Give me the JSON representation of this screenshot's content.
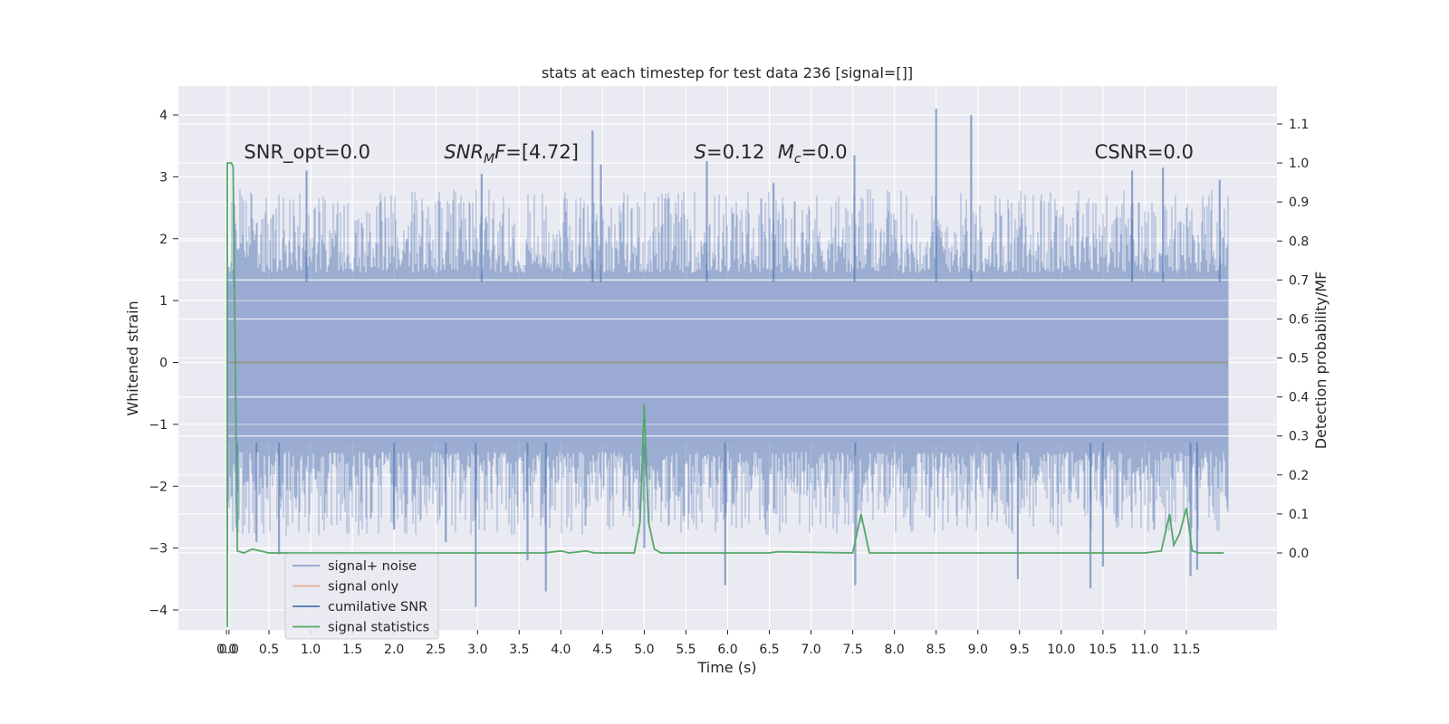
{
  "chart_data": {
    "type": "line",
    "title": "stats at each timestep for test data 236 [signal=[]]",
    "xlabel": "Time (s)",
    "ylabel": "Whitened strain",
    "y2label": "Detection probability/MF",
    "xlim": [
      -0.6,
      12.6
    ],
    "ylim": [
      -4.4,
      4.4
    ],
    "y2lim": [
      -0.19,
      1.2
    ],
    "xticks": [
      "0.0",
      "0.0",
      "0.5",
      "1.0",
      "1.5",
      "2.0",
      "2.5",
      "3.0",
      "3.5",
      "4.0",
      "4.5",
      "5.0",
      "5.5",
      "6.0",
      "6.5",
      "7.0",
      "7.5",
      "8.0",
      "8.5",
      "9.0",
      "9.5",
      "10.0",
      "10.5",
      "11.0",
      "11.5"
    ],
    "xtick_values": [
      -0.01,
      0.02,
      0.5,
      1.0,
      1.5,
      2.0,
      2.5,
      3.0,
      3.5,
      4.0,
      4.5,
      5.0,
      5.5,
      6.0,
      6.5,
      7.0,
      7.5,
      8.0,
      8.5,
      9.0,
      9.5,
      10.0,
      10.5,
      11.0,
      11.5
    ],
    "yticks": [
      4,
      3,
      2,
      1,
      0,
      -1,
      -2,
      -3,
      -4
    ],
    "ytick_labels": [
      "4",
      "3",
      "2",
      "1",
      "0",
      "−1",
      "−2",
      "−3",
      "−4"
    ],
    "y2ticks": [
      1.1,
      1.0,
      0.9,
      0.8,
      0.7,
      0.6,
      0.5,
      0.4,
      0.3,
      0.2,
      0.1,
      0.0
    ],
    "y2tick_labels": [
      "1.1",
      "1.0",
      "0.9",
      "0.8",
      "0.7",
      "0.6",
      "0.5",
      "0.4",
      "0.3",
      "0.2",
      "0.1",
      "0.0"
    ],
    "grid": true,
    "legend_position": "lower-left",
    "annotations": [
      {
        "text": "SNR_opt=0.0",
        "x": 0.2
      },
      {
        "text": "SNR_MF=[4.72]",
        "x": 2.6
      },
      {
        "text": "S=0.12",
        "x": 5.6
      },
      {
        "text": "M_c=0.0",
        "x": 6.6
      },
      {
        "text": "CSNR=0.0",
        "x": 10.4
      }
    ],
    "annotation_y": 3.3,
    "series": [
      {
        "name": "signal+ noise",
        "color": "#4c72b0",
        "axis": "left",
        "noise": {
          "x_start": 0.0,
          "x_end": 12.0,
          "band": [
            -1.3,
            1.3
          ],
          "peak_range": [
            2.7,
            -2.7
          ]
        },
        "spikes": [
          {
            "x": 0.08,
            "y": 2.55
          },
          {
            "x": 0.12,
            "y": -2.1
          },
          {
            "x": 0.35,
            "y": -2.9
          },
          {
            "x": 0.62,
            "y": -3.1
          },
          {
            "x": 0.95,
            "y": 3.1
          },
          {
            "x": 2.0,
            "y": -2.7
          },
          {
            "x": 2.62,
            "y": -2.9
          },
          {
            "x": 2.98,
            "y": -3.95
          },
          {
            "x": 3.05,
            "y": 3.05
          },
          {
            "x": 3.6,
            "y": -3.2
          },
          {
            "x": 3.82,
            "y": -3.7
          },
          {
            "x": 4.38,
            "y": 3.75
          },
          {
            "x": 4.48,
            "y": 3.2
          },
          {
            "x": 5.0,
            "y": -3.0
          },
          {
            "x": 5.75,
            "y": 3.25
          },
          {
            "x": 5.97,
            "y": -3.6
          },
          {
            "x": 6.55,
            "y": 2.9
          },
          {
            "x": 7.52,
            "y": 3.35
          },
          {
            "x": 7.53,
            "y": -3.6
          },
          {
            "x": 8.5,
            "y": 4.1
          },
          {
            "x": 8.92,
            "y": 4.0
          },
          {
            "x": 9.48,
            "y": -3.5
          },
          {
            "x": 10.35,
            "y": -3.65
          },
          {
            "x": 10.5,
            "y": -3.3
          },
          {
            "x": 10.85,
            "y": 3.1
          },
          {
            "x": 11.22,
            "y": 3.15
          },
          {
            "x": 11.55,
            "y": -3.45
          },
          {
            "x": 11.63,
            "y": -3.35
          },
          {
            "x": 11.9,
            "y": 2.95
          }
        ]
      },
      {
        "name": "signal only",
        "color": "#dd8452",
        "axis": "left",
        "x": [
          0.0,
          12.0
        ],
        "y": [
          0.0,
          0.0
        ]
      },
      {
        "name": "cumilative SNR",
        "color": "#4c72b0",
        "axis": "left",
        "x": [
          0.0,
          12.0
        ],
        "y": [
          0.0,
          0.0
        ]
      },
      {
        "name": "signal statistics",
        "color": "#55a868",
        "axis": "right",
        "x": [
          0.0,
          0.0,
          0.05,
          0.07,
          0.12,
          0.2,
          0.3,
          0.5,
          1.0,
          2.0,
          3.0,
          3.8,
          4.0,
          4.1,
          4.3,
          4.4,
          4.88,
          4.95,
          5.0,
          5.05,
          5.12,
          5.2,
          6.0,
          6.5,
          6.6,
          7.5,
          7.6,
          7.7,
          8.0,
          9.0,
          10.0,
          11.0,
          11.2,
          11.3,
          11.35,
          11.42,
          11.5,
          11.57,
          11.65,
          11.95
        ],
        "y": [
          -0.19,
          1.0,
          1.0,
          0.99,
          0.005,
          0.0,
          0.01,
          0.0,
          0.0,
          0.0,
          0.0,
          0.0,
          0.005,
          0.0,
          0.005,
          0.0,
          0.0,
          0.08,
          0.38,
          0.08,
          0.01,
          0.0,
          0.0,
          0.0,
          0.003,
          0.0,
          0.1,
          0.0,
          0.0,
          0.0,
          0.0,
          0.0,
          0.005,
          0.1,
          0.02,
          0.05,
          0.115,
          0.005,
          0.0,
          0.0
        ]
      }
    ]
  }
}
